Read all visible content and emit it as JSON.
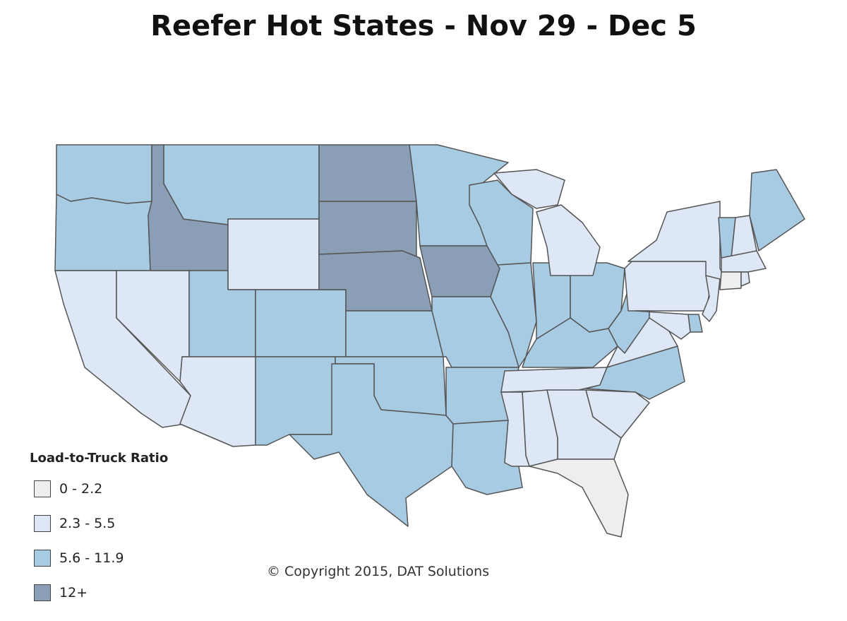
{
  "title": "Reefer Hot States - Nov 29 - Dec 5",
  "copyright": "© Copyright 2015, DAT Solutions",
  "legend": {
    "title": "Load-to-Truck Ratio",
    "bins": [
      {
        "label": "0 - 2.2",
        "color": "#eeeeef"
      },
      {
        "label": "2.3 - 5.5",
        "color": "#dde7f6"
      },
      {
        "label": "5.6 - 11.9",
        "color": "#a8cbe4"
      },
      {
        "label": "12+",
        "color": "#8a9fb5"
      }
    ]
  },
  "states": {
    "WA": 2,
    "OR": 2,
    "CA": 1,
    "NV": 1,
    "ID": 3,
    "MT": 2,
    "WY": 1,
    "UT": 2,
    "AZ": 1,
    "CO": 2,
    "NM": 2,
    "ND": 3,
    "SD": 3,
    "NE": 3,
    "KS": 2,
    "OK": 2,
    "TX": 2,
    "MN": 2,
    "IA": 3,
    "MO": 2,
    "AR": 2,
    "LA": 2,
    "WI": 2,
    "IL": 2,
    "IN": 2,
    "OH": 2,
    "MI": 1,
    "MIU": 1,
    "KY": 2,
    "TN": 1,
    "WV": 2,
    "VA": 1,
    "NC": 2,
    "SC": 1,
    "GA": 1,
    "AL": 1,
    "MS": 1,
    "FL": 0,
    "PA": 1,
    "NY": 1,
    "NJ": 1,
    "DE": 2,
    "MD": 1,
    "VT": 2,
    "NH": 1,
    "ME": 2,
    "MA": 1,
    "CT": 0,
    "RI": 1
  }
}
